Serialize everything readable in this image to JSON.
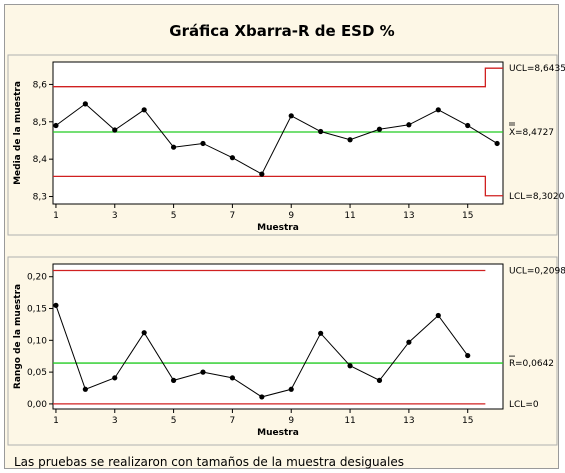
{
  "title": "Gráfica Xbarra-R de ESD %",
  "footnote": "Las pruebas se realizaron con tamaños de la muestra desiguales",
  "colors": {
    "background": "#fdf7e6",
    "plot_bg": "#ffffff",
    "center_line": "#22cc22",
    "limit_line": "#d02020",
    "data_line": "#000000"
  },
  "chart_data": [
    {
      "type": "line",
      "name": "xbar",
      "ylabel": "Media de la muestra",
      "xlabel": "Muestra",
      "x": [
        1,
        2,
        3,
        4,
        5,
        6,
        7,
        8,
        9,
        10,
        11,
        12,
        13,
        14,
        15,
        16
      ],
      "values": [
        8.49,
        8.548,
        8.478,
        8.532,
        8.432,
        8.442,
        8.404,
        8.36,
        8.516,
        8.474,
        8.452,
        8.48,
        8.492,
        8.532,
        8.49,
        8.442
      ],
      "xlim": [
        0.9,
        16.2
      ],
      "ylim": [
        8.28,
        8.66
      ],
      "yticks": [
        8.3,
        8.4,
        8.5,
        8.6
      ],
      "ytick_labels": [
        "8,3",
        "8,4",
        "8,5",
        "8,6"
      ],
      "xticks": [
        1,
        3,
        5,
        7,
        9,
        11,
        13,
        15
      ],
      "center": 8.4727,
      "ucl_steps": [
        [
          0.9,
          15.6,
          8.594
        ],
        [
          15.6,
          16.2,
          8.6435
        ]
      ],
      "lcl_steps": [
        [
          0.9,
          15.6,
          8.354
        ],
        [
          15.6,
          16.2,
          8.302
        ]
      ],
      "labels": {
        "ucl": "UCL=8,6435",
        "center_bar": "X",
        "center": "=8,4727",
        "lcl": "LCL=8,3020"
      }
    },
    {
      "type": "line",
      "name": "range",
      "ylabel": "Rango de la muestra",
      "xlabel": "Muestra",
      "x": [
        1,
        2,
        3,
        4,
        5,
        6,
        7,
        8,
        9,
        10,
        11,
        12,
        13,
        14,
        15
      ],
      "values": [
        0.155,
        0.023,
        0.041,
        0.112,
        0.037,
        0.05,
        0.041,
        0.011,
        0.023,
        0.111,
        0.06,
        0.037,
        0.097,
        0.139,
        0.076
      ],
      "xlim": [
        0.9,
        16.2
      ],
      "ylim": [
        -0.008,
        0.22
      ],
      "yticks": [
        0.0,
        0.05,
        0.1,
        0.15,
        0.2
      ],
      "ytick_labels": [
        "0,00",
        "0,05",
        "0,10",
        "0,15",
        "0,20"
      ],
      "xticks": [
        1,
        3,
        5,
        7,
        9,
        11,
        13,
        15
      ],
      "center": 0.0642,
      "ucl_steps": [
        [
          0.9,
          15.6,
          0.2098
        ]
      ],
      "lcl_steps": [
        [
          0.9,
          15.6,
          0.0
        ]
      ],
      "labels": {
        "ucl": "UCL=0,2098",
        "center_bar": "R",
        "center": "=0,0642",
        "lcl": "LCL=0"
      }
    }
  ]
}
